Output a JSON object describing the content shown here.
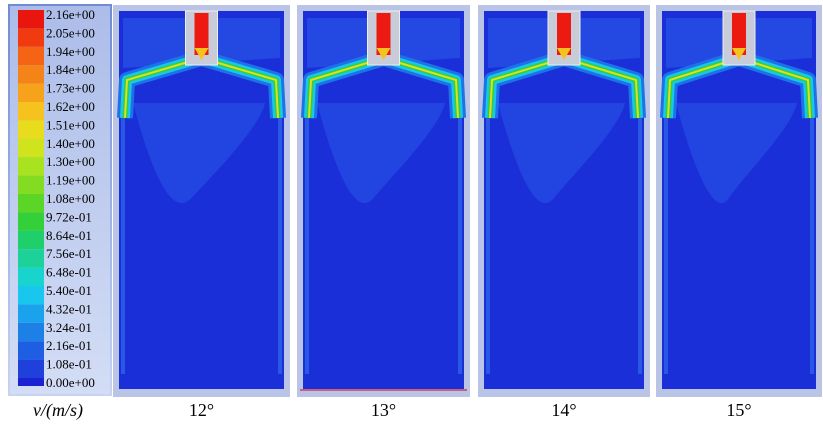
{
  "colorbar": {
    "title": "v/(m/s)",
    "labels": [
      "2.16e+00",
      "2.05e+00",
      "1.94e+00",
      "1.84e+00",
      "1.73e+00",
      "1.62e+00",
      "1.51e+00",
      "1.40e+00",
      "1.30e+00",
      "1.19e+00",
      "1.08e+00",
      "9.72e-01",
      "8.64e-01",
      "7.56e-01",
      "6.48e-01",
      "5.40e-01",
      "4.32e-01",
      "3.24e-01",
      "2.16e-01",
      "1.08e-01",
      "0.00e+00"
    ]
  },
  "panels": [
    {
      "label": "12°"
    },
    {
      "label": "13°"
    },
    {
      "label": "14°"
    },
    {
      "label": "15°"
    }
  ]
}
